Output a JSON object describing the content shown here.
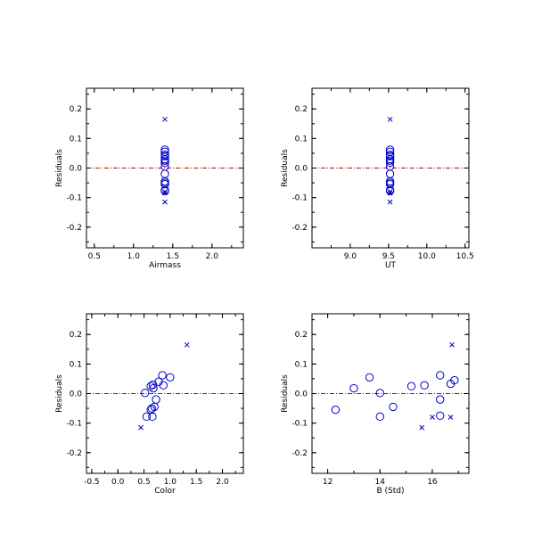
{
  "colors": {
    "marker": "#0000cc",
    "zero_line": "#cc0000",
    "axes": "#000000",
    "background": "#ffffff"
  },
  "chart_data": [
    {
      "type": "scatter",
      "xlabel": "Airmass",
      "ylabel": "Residuals",
      "xlim": [
        0.4,
        2.4
      ],
      "ylim": [
        -0.27,
        0.27
      ],
      "xticks": [
        0.5,
        1.0,
        1.5,
        2.0
      ],
      "xtick_labels": [
        "0.5",
        "1.0",
        "1.5",
        "2.0"
      ],
      "yticks": [
        -0.2,
        -0.1,
        0.0,
        0.1,
        0.2
      ],
      "ytick_labels": [
        "-0.2",
        "-0.1",
        "0.0",
        "0.1",
        "0.2"
      ],
      "grid": false,
      "zero_line": 0.0,
      "series": [
        {
          "marker": "circle",
          "x": [
            1.4,
            1.4,
            1.4,
            1.4,
            1.4,
            1.4,
            1.4,
            1.4,
            1.4,
            1.4,
            1.4,
            1.4,
            1.4,
            1.4
          ],
          "y": [
            0.062,
            0.055,
            0.045,
            0.03,
            0.025,
            0.018,
            0.005,
            -0.02,
            -0.045,
            -0.05,
            -0.055,
            -0.075,
            -0.078,
            0.04
          ]
        },
        {
          "marker": "x",
          "x": [
            1.4,
            1.4,
            1.4,
            1.4
          ],
          "y": [
            0.165,
            -0.08,
            -0.085,
            -0.115
          ]
        }
      ]
    },
    {
      "type": "scatter",
      "xlabel": "UT",
      "ylabel": "Residuals",
      "xlim": [
        8.5,
        10.55
      ],
      "ylim": [
        -0.27,
        0.27
      ],
      "xticks": [
        9.0,
        9.5,
        10.0,
        10.5
      ],
      "xtick_labels": [
        "9.0",
        "9.5",
        "10.0",
        "10.5"
      ],
      "yticks": [
        -0.2,
        -0.1,
        0.0,
        0.1,
        0.2
      ],
      "ytick_labels": [
        "-0.2",
        "-0.1",
        "0.0",
        "0.1",
        "0.2"
      ],
      "grid": false,
      "zero_line": 0.0,
      "series": [
        {
          "marker": "circle",
          "x": [
            9.52,
            9.52,
            9.52,
            9.52,
            9.52,
            9.52,
            9.52,
            9.52,
            9.52,
            9.52,
            9.52,
            9.52,
            9.52,
            9.52
          ],
          "y": [
            0.062,
            0.055,
            0.045,
            0.03,
            0.025,
            0.018,
            0.005,
            -0.02,
            -0.045,
            -0.05,
            -0.055,
            -0.075,
            -0.078,
            0.04
          ]
        },
        {
          "marker": "x",
          "x": [
            9.52,
            9.52,
            9.52,
            9.52
          ],
          "y": [
            0.165,
            -0.08,
            -0.085,
            -0.115
          ]
        }
      ]
    },
    {
      "type": "scatter",
      "xlabel": "Color",
      "ylabel": "Residuals",
      "xlim": [
        -0.6,
        2.4
      ],
      "ylim": [
        -0.27,
        0.27
      ],
      "xticks": [
        -0.5,
        0.0,
        0.5,
        1.0,
        1.5,
        2.0
      ],
      "xtick_labels": [
        "-0.5",
        "0.0",
        "0.5",
        "1.0",
        "1.5",
        "2.0"
      ],
      "yticks": [
        -0.2,
        -0.1,
        0.0,
        0.1,
        0.2
      ],
      "ytick_labels": [
        "-0.2",
        "-0.1",
        "0.0",
        "0.1",
        "0.2"
      ],
      "grid": false,
      "zero_line": 0.0,
      "series": [
        {
          "marker": "circle",
          "x": [
            0.52,
            0.55,
            0.63,
            0.65,
            0.66,
            0.68,
            0.7,
            0.73,
            0.78,
            0.85,
            0.87,
            1.0,
            0.63,
            0.67
          ],
          "y": [
            0.002,
            -0.078,
            0.025,
            -0.05,
            -0.078,
            0.018,
            -0.045,
            -0.02,
            0.04,
            0.062,
            0.028,
            0.055,
            -0.055,
            0.03
          ]
        },
        {
          "marker": "x",
          "x": [
            0.44,
            1.32
          ],
          "y": [
            -0.115,
            0.165
          ]
        }
      ]
    },
    {
      "type": "scatter",
      "xlabel": "B (Std)",
      "ylabel": "Residuals",
      "xlim": [
        11.4,
        17.4
      ],
      "ylim": [
        -0.27,
        0.27
      ],
      "xticks": [
        12,
        14,
        16
      ],
      "xtick_labels": [
        "12",
        "14",
        "16"
      ],
      "yticks": [
        -0.2,
        -0.1,
        0.0,
        0.1,
        0.2
      ],
      "ytick_labels": [
        "-0.2",
        "-0.1",
        "0.0",
        "0.1",
        "0.2"
      ],
      "grid": false,
      "zero_line": 0.0,
      "series": [
        {
          "marker": "circle",
          "x": [
            12.3,
            13.0,
            13.6,
            14.0,
            14.0,
            14.5,
            15.2,
            15.7,
            16.3,
            16.3,
            16.3,
            16.7,
            16.85
          ],
          "y": [
            -0.055,
            0.018,
            0.055,
            0.002,
            -0.078,
            -0.045,
            0.025,
            0.028,
            0.062,
            -0.02,
            -0.075,
            0.033,
            0.045
          ]
        },
        {
          "marker": "x",
          "x": [
            15.6,
            16.0,
            16.7,
            16.75
          ],
          "y": [
            -0.115,
            -0.08,
            -0.08,
            0.165
          ]
        }
      ]
    }
  ]
}
